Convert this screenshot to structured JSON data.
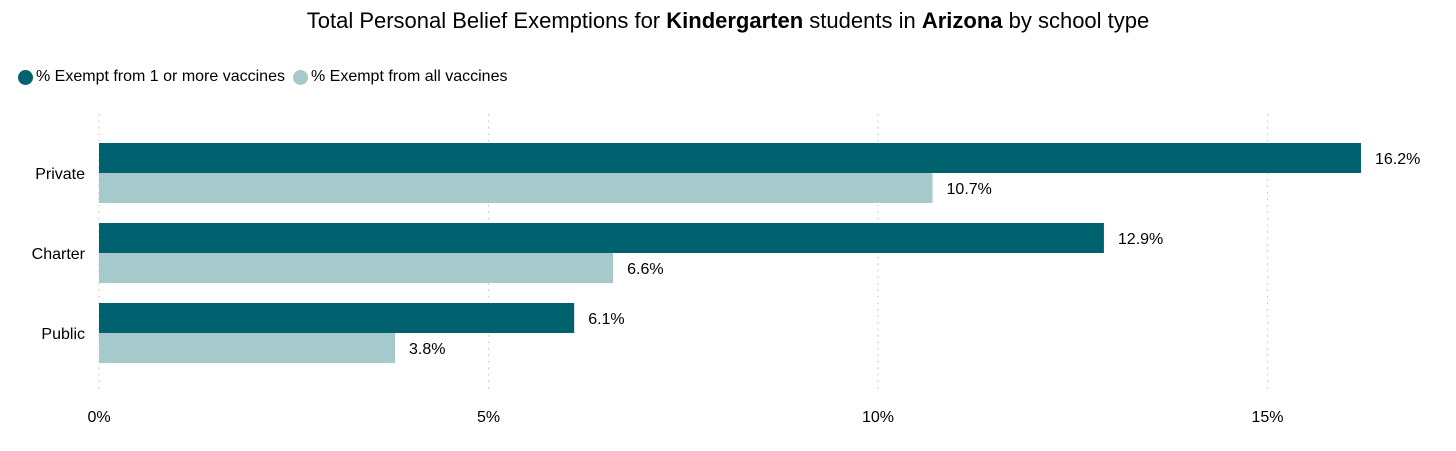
{
  "title": {
    "prefix": "Total Personal Belief Exemptions for ",
    "bold1": "Kindergarten",
    "middle": " students in ",
    "bold2": "Arizona",
    "suffix": " by school type"
  },
  "chart_data": {
    "type": "bar",
    "orientation": "horizontal",
    "title": "Total Personal Belief Exemptions for Kindergarten students in Arizona by school type",
    "categories": [
      "Private",
      "Charter",
      "Public"
    ],
    "series": [
      {
        "name": "% Exempt from 1 or more vaccines",
        "color": "#00626e",
        "values": [
          16.2,
          12.9,
          6.1
        ],
        "labels": [
          "16.2%",
          "12.9%",
          "6.1%"
        ]
      },
      {
        "name": "% Exempt from all vaccines",
        "color": "#a6c9cc",
        "values": [
          10.7,
          6.6,
          3.8
        ],
        "labels": [
          "10.7%",
          "6.6%",
          "3.8%"
        ]
      }
    ],
    "xlim": [
      0,
      17
    ],
    "xticks": [
      0,
      5,
      10,
      15
    ],
    "xtick_labels": [
      "0%",
      "5%",
      "10%",
      "15%"
    ],
    "grid": "vertical-dotted",
    "legend": "top-left",
    "xlabel": "",
    "ylabel": ""
  }
}
